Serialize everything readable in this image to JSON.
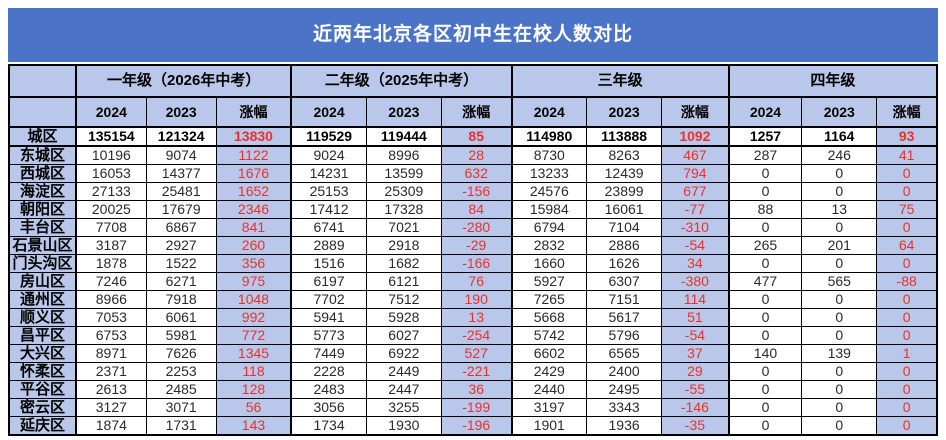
{
  "colors": {
    "title_bg": "#4b74c8",
    "header_bg": "#b9c8ea",
    "change_red": "#e9322d",
    "title_text": "#ffffff",
    "border": "#000000"
  },
  "chart_data": {
    "type": "table",
    "title": "近两年北京各区初中生在校人数对比",
    "corner_label": "",
    "column_groups": [
      {
        "label": "一年级（2026年中考）",
        "span": 3
      },
      {
        "label": "二年级（2025年中考）",
        "span": 3
      },
      {
        "label": "三年级",
        "span": 3
      },
      {
        "label": "四年级",
        "span": 3
      }
    ],
    "sub_columns": [
      "2024",
      "2023",
      "涨幅"
    ],
    "rows": [
      {
        "district": "城区",
        "total": true,
        "values": [
          135154,
          121324,
          13830,
          119529,
          119444,
          85,
          114980,
          113888,
          1092,
          1257,
          1164,
          93
        ]
      },
      {
        "district": "东城区",
        "total": false,
        "values": [
          10196,
          9074,
          1122,
          9024,
          8996,
          28,
          8730,
          8263,
          467,
          287,
          246,
          41
        ]
      },
      {
        "district": "西城区",
        "total": false,
        "values": [
          16053,
          14377,
          1676,
          14231,
          13599,
          632,
          13233,
          12439,
          794,
          0,
          0,
          0
        ]
      },
      {
        "district": "海淀区",
        "total": false,
        "values": [
          27133,
          25481,
          1652,
          25153,
          25309,
          -156,
          24576,
          23899,
          677,
          0,
          0,
          0
        ]
      },
      {
        "district": "朝阳区",
        "total": false,
        "values": [
          20025,
          17679,
          2346,
          17412,
          17328,
          84,
          15984,
          16061,
          -77,
          88,
          13,
          75
        ]
      },
      {
        "district": "丰台区",
        "total": false,
        "values": [
          7708,
          6867,
          841,
          6741,
          7021,
          -280,
          6794,
          7104,
          -310,
          0,
          0,
          0
        ]
      },
      {
        "district": "石景山区",
        "total": false,
        "values": [
          3187,
          2927,
          260,
          2889,
          2918,
          -29,
          2832,
          2886,
          -54,
          265,
          201,
          64
        ]
      },
      {
        "district": "门头沟区",
        "total": false,
        "values": [
          1878,
          1522,
          356,
          1516,
          1682,
          -166,
          1660,
          1626,
          34,
          0,
          0,
          0
        ]
      },
      {
        "district": "房山区",
        "total": false,
        "values": [
          7246,
          6271,
          975,
          6197,
          6121,
          76,
          5927,
          6307,
          -380,
          477,
          565,
          -88
        ]
      },
      {
        "district": "通州区",
        "total": false,
        "values": [
          8966,
          7918,
          1048,
          7702,
          7512,
          190,
          7265,
          7151,
          114,
          0,
          0,
          0
        ]
      },
      {
        "district": "顺义区",
        "total": false,
        "values": [
          7053,
          6061,
          992,
          5941,
          5928,
          13,
          5668,
          5617,
          51,
          0,
          0,
          0
        ]
      },
      {
        "district": "昌平区",
        "total": false,
        "values": [
          6753,
          5981,
          772,
          5773,
          6027,
          -254,
          5742,
          5796,
          -54,
          0,
          0,
          0
        ]
      },
      {
        "district": "大兴区",
        "total": false,
        "values": [
          8971,
          7626,
          1345,
          7449,
          6922,
          527,
          6602,
          6565,
          37,
          140,
          139,
          1
        ]
      },
      {
        "district": "怀柔区",
        "total": false,
        "values": [
          2371,
          2253,
          118,
          2228,
          2449,
          -221,
          2429,
          2400,
          29,
          0,
          0,
          0
        ]
      },
      {
        "district": "平谷区",
        "total": false,
        "values": [
          2613,
          2485,
          128,
          2483,
          2447,
          36,
          2440,
          2495,
          -55,
          0,
          0,
          0
        ]
      },
      {
        "district": "密云区",
        "total": false,
        "values": [
          3127,
          3071,
          56,
          3056,
          3255,
          -199,
          3197,
          3343,
          -146,
          0,
          0,
          0
        ]
      },
      {
        "district": "延庆区",
        "total": false,
        "values": [
          1874,
          1731,
          143,
          1734,
          1930,
          -196,
          1901,
          1936,
          -35,
          0,
          0,
          0
        ]
      }
    ]
  }
}
